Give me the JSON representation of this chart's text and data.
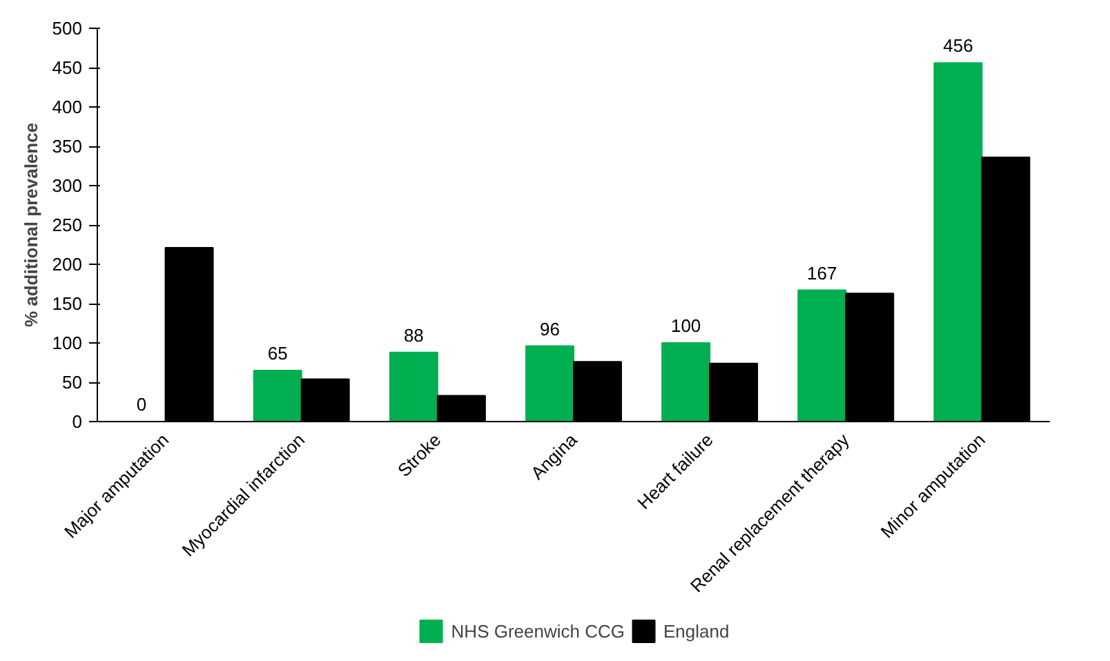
{
  "chart_data": {
    "type": "bar",
    "ylabel": "% additional prevalence",
    "categories": [
      "Major amputation",
      "Myocardial infarction",
      "Stroke",
      "Angina",
      "Heart failure",
      "Renal replacement therapy",
      "Minor amputation"
    ],
    "series": [
      {
        "name": "NHS Greenwich CCG",
        "color": "#00b050",
        "values": [
          0,
          65,
          88,
          96,
          100,
          167,
          456
        ],
        "value_labels": [
          "0",
          "65",
          "88",
          "96",
          "100",
          "167",
          "456"
        ]
      },
      {
        "name": "England",
        "color": "#000000",
        "values": [
          221,
          54,
          33,
          76,
          74,
          163,
          336
        ]
      }
    ],
    "ylim": [
      0,
      500
    ],
    "yticks": [
      0,
      50,
      100,
      150,
      200,
      250,
      300,
      350,
      400,
      450,
      500
    ],
    "grid": false,
    "legend": "bottom"
  }
}
